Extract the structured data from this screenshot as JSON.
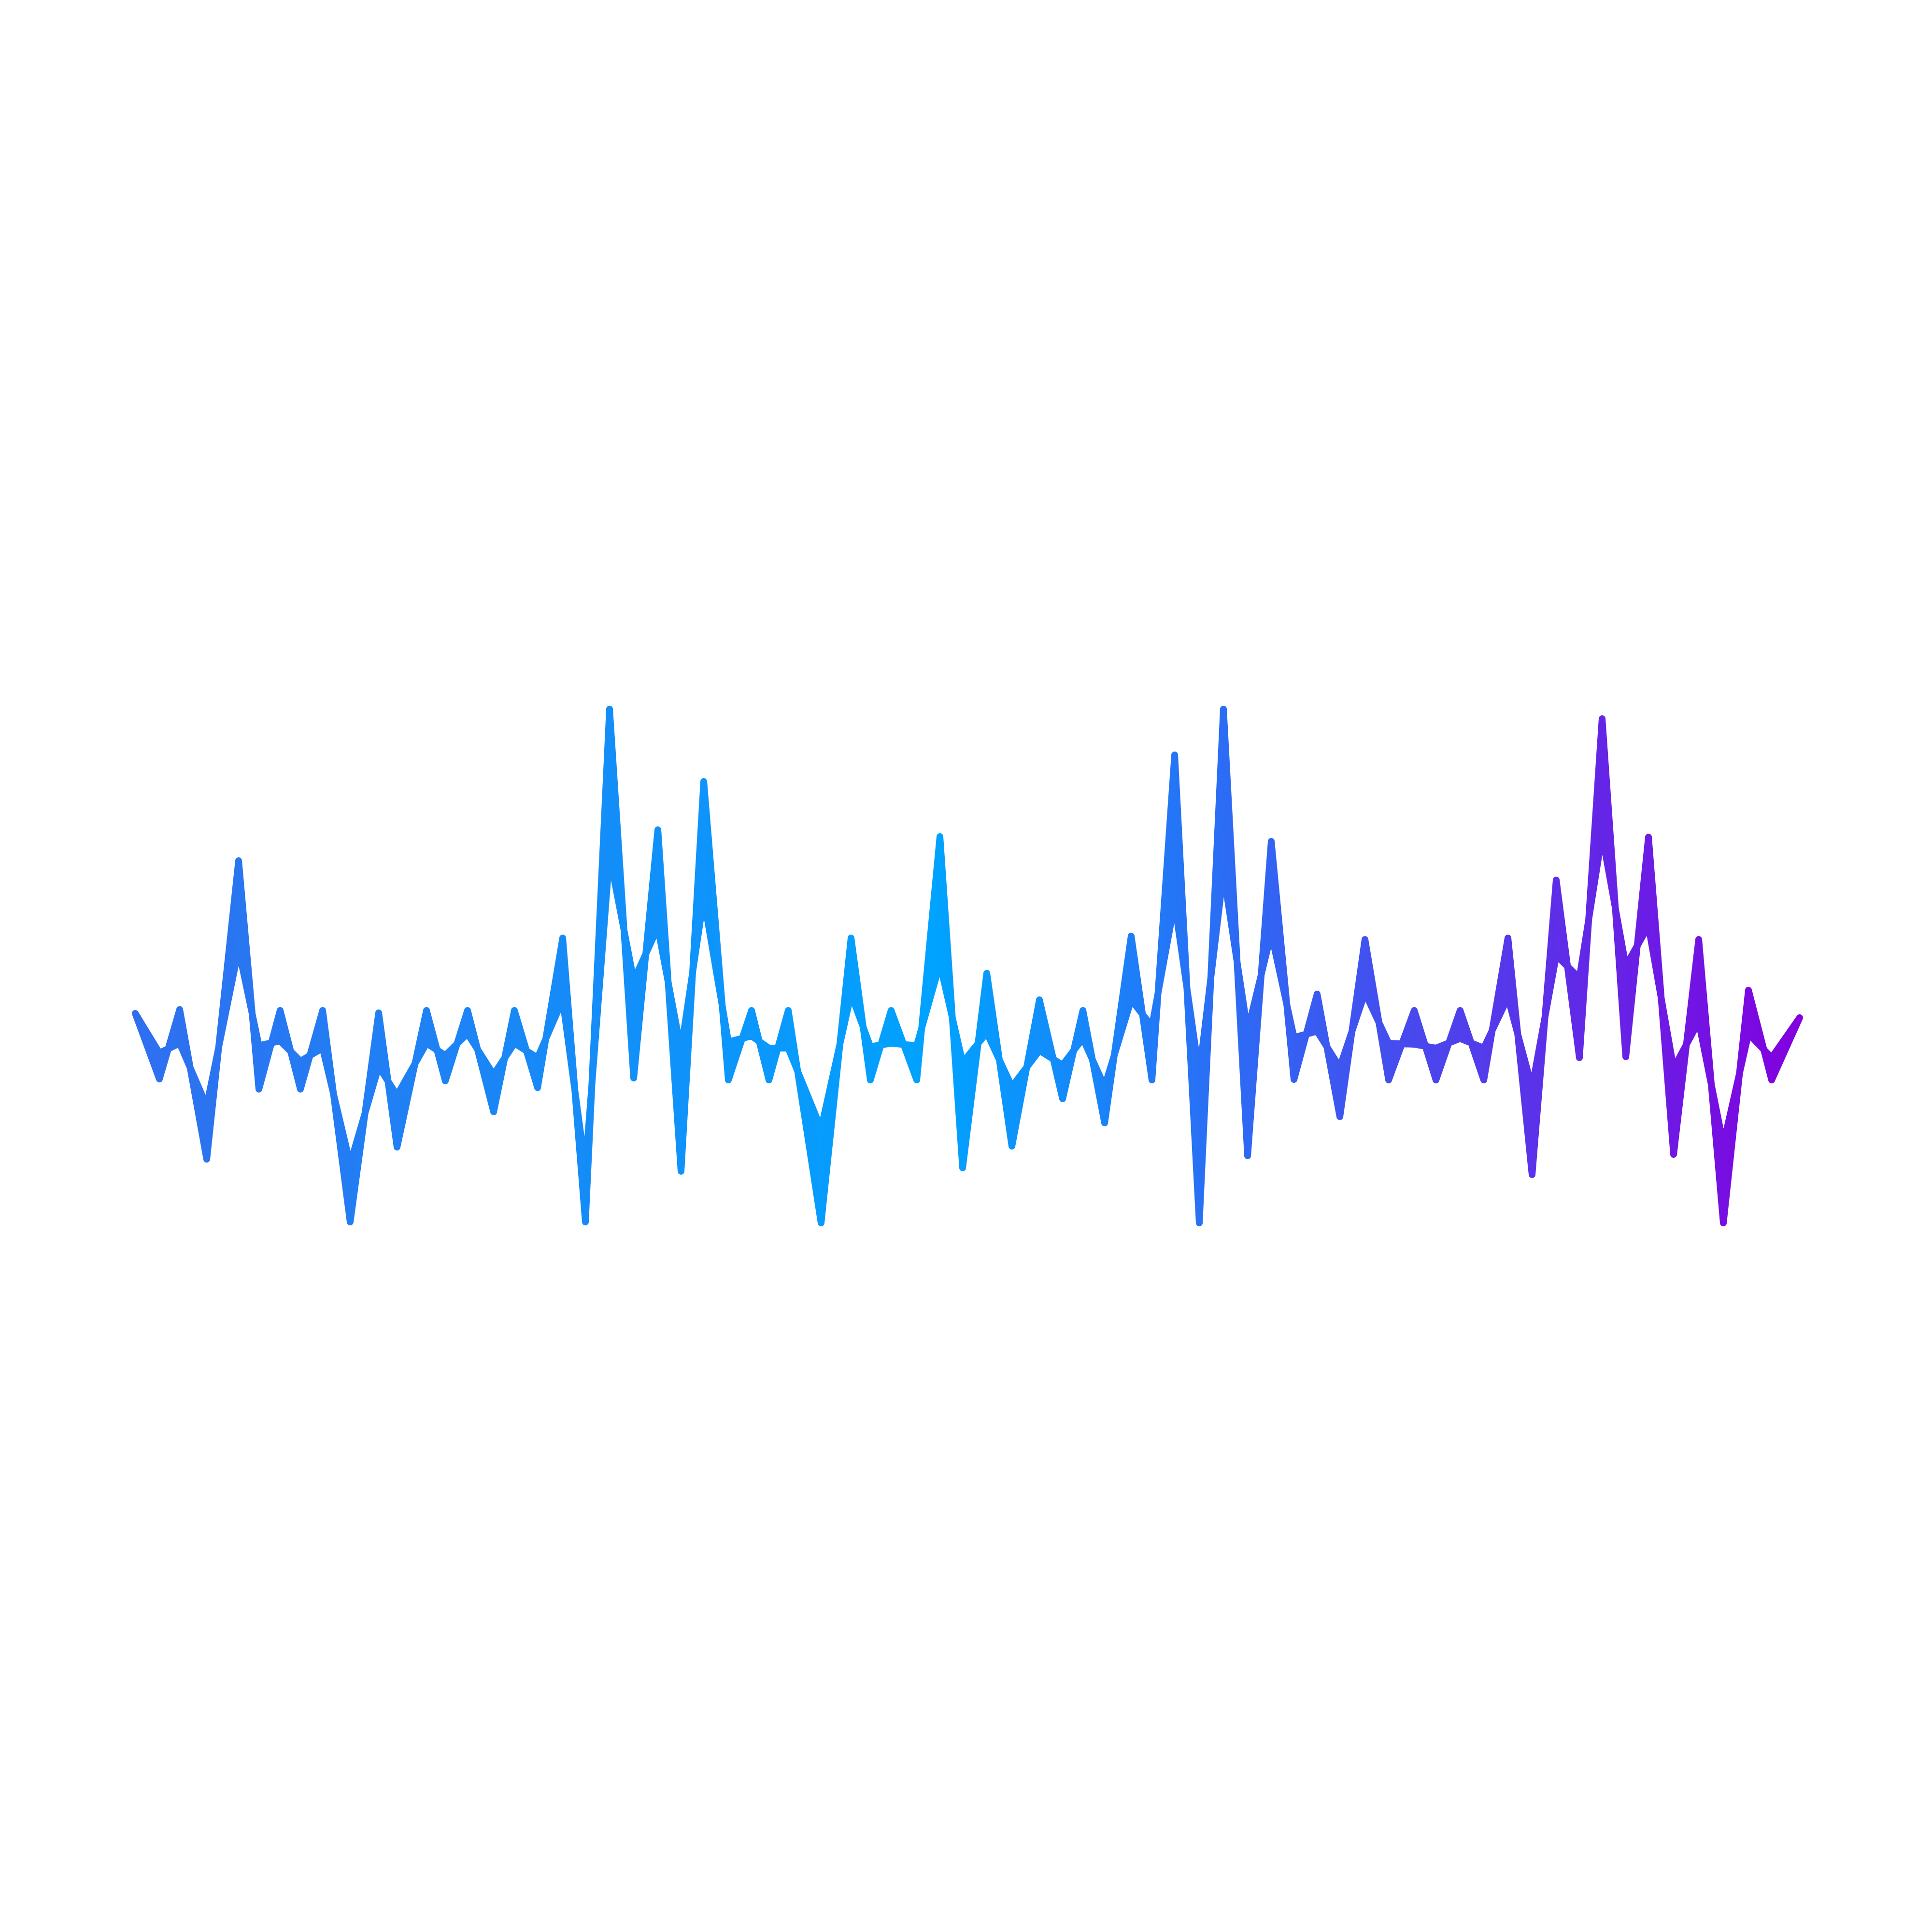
{
  "artwork": {
    "subject": "sound-wave-icon",
    "background_color": "#ffffff",
    "gradient": {
      "start_color": "#2f6fef",
      "middle_color": "#00a3ff",
      "end_color": "#8200df"
    }
  }
}
